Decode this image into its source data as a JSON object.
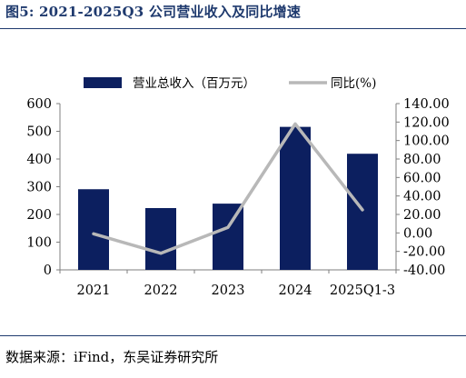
{
  "figure": {
    "title": "图5:  2021-2025Q3 公司营业收入及同比增速",
    "source": "数据来源：iFind，东吴证券研究所"
  },
  "chart_data": {
    "type": "bar",
    "categories": [
      "2021",
      "2022",
      "2023",
      "2024",
      "2025Q1-3"
    ],
    "series": [
      {
        "name": "营业总收入（百万元）",
        "type": "bar",
        "axis": "left",
        "values": [
          291,
          223,
          239,
          516,
          419
        ],
        "color": "#0c1f5f"
      },
      {
        "name": "同比(%)",
        "type": "line",
        "axis": "right",
        "values": [
          -1.0,
          -22.0,
          6.0,
          118.0,
          25.0
        ],
        "color": "#b8b8b8"
      }
    ],
    "y_left": {
      "min": 0,
      "max": 600,
      "ticks": [
        "0",
        "100",
        "200",
        "300",
        "400",
        "500",
        "600"
      ]
    },
    "y_right": {
      "min": -40,
      "max": 140,
      "ticks": [
        "-40.00",
        "-20.00",
        "0.00",
        "20.00",
        "40.00",
        "60.00",
        "80.00",
        "100.00",
        "120.00",
        "140.00"
      ]
    },
    "legend_position": "top",
    "grid": false
  }
}
